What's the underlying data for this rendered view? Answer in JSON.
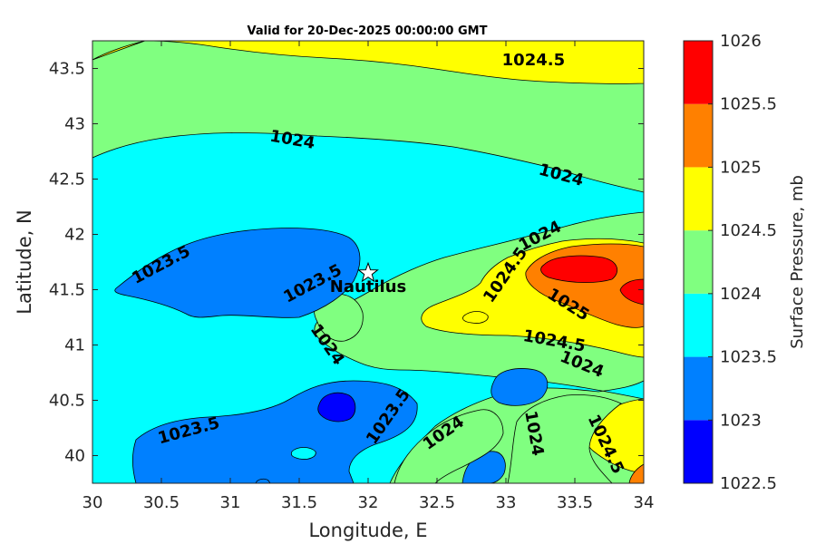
{
  "chart_data": {
    "type": "contour",
    "title": "Valid for 20-Dec-2025 00:00:00 GMT",
    "xlabel": "Longitude, E",
    "ylabel": "Latitude, N",
    "xlim": [
      30,
      34
    ],
    "ylim": [
      39.75,
      43.75
    ],
    "xticks": [
      30,
      30.5,
      31,
      31.5,
      32,
      32.5,
      33,
      33.5,
      34
    ],
    "xtick_labels": [
      "30",
      "30.5",
      "31",
      "31.5",
      "32",
      "32.5",
      "33",
      "33.5",
      "34"
    ],
    "yticks": [
      40,
      40.5,
      41,
      41.5,
      42,
      42.5,
      43,
      43.5
    ],
    "ytick_labels": [
      "40",
      "40.5",
      "41",
      "41.5",
      "42",
      "42.5",
      "43",
      "43.5"
    ],
    "colorbar": {
      "label": "Surface Pressure, mb",
      "levels": [
        1022.5,
        1023,
        1023.5,
        1024,
        1024.5,
        1025,
        1025.5,
        1026
      ],
      "tick_labels": [
        "1022.5",
        "1023",
        "1023.5",
        "1024",
        "1024.5",
        "1025",
        "1025.5",
        "1026"
      ],
      "colors": [
        "#0000ff",
        "#0080ff",
        "#00ffff",
        "#80ff80",
        "#ffff00",
        "#ff8000",
        "#ff0000",
        "#800000"
      ]
    },
    "contour_labels": [
      {
        "text": "1024.5",
        "lon": 33.2,
        "lat": 43.57,
        "angle": 0
      },
      {
        "text": "1024",
        "lon": 31.45,
        "lat": 42.85,
        "angle": 10
      },
      {
        "text": "1024",
        "lon": 33.4,
        "lat": 42.53,
        "angle": 15
      },
      {
        "text": "1023.5",
        "lon": 30.5,
        "lat": 41.72,
        "angle": -28
      },
      {
        "text": "1023.5",
        "lon": 31.6,
        "lat": 41.55,
        "angle": -28
      },
      {
        "text": "1024",
        "lon": 33.25,
        "lat": 41.98,
        "angle": -28
      },
      {
        "text": "1024.5",
        "lon": 33.0,
        "lat": 41.63,
        "angle": -55
      },
      {
        "text": "1025",
        "lon": 33.45,
        "lat": 41.36,
        "angle": 32
      },
      {
        "text": "1024",
        "lon": 31.7,
        "lat": 41.0,
        "angle": 55
      },
      {
        "text": "1024.5",
        "lon": 33.35,
        "lat": 41.03,
        "angle": 10
      },
      {
        "text": "1024",
        "lon": 33.55,
        "lat": 40.82,
        "angle": 22
      },
      {
        "text": "1023.5",
        "lon": 32.15,
        "lat": 40.35,
        "angle": -55
      },
      {
        "text": "1023.5",
        "lon": 30.7,
        "lat": 40.22,
        "angle": -15
      },
      {
        "text": "1024",
        "lon": 32.55,
        "lat": 40.2,
        "angle": -35
      },
      {
        "text": "1024",
        "lon": 33.2,
        "lat": 40.2,
        "angle": 80
      },
      {
        "text": "1024.5",
        "lon": 33.72,
        "lat": 40.1,
        "angle": 65
      }
    ],
    "markers": [
      {
        "label": "Nautilus",
        "lon": 32.0,
        "lat": 41.65,
        "symbol": "star"
      }
    ]
  }
}
